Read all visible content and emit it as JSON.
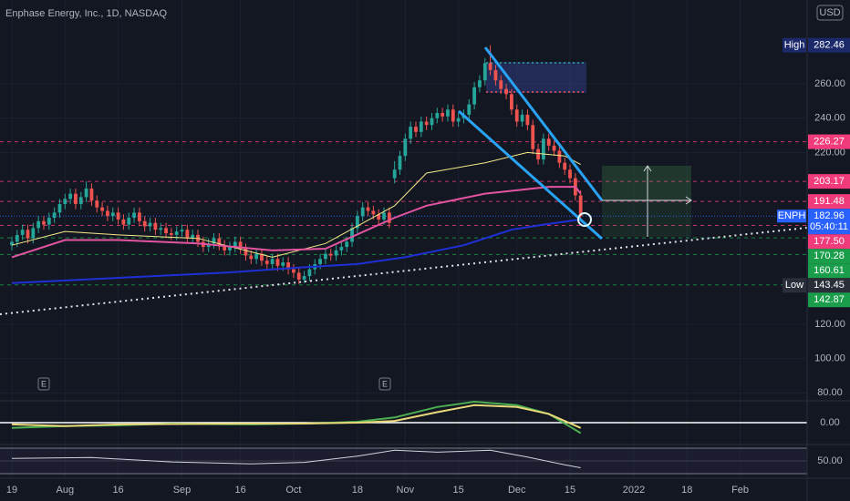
{
  "chart_data": {
    "type": "candlestick",
    "title": "Enphase Energy, Inc., 1D, NASDAQ",
    "currency": "USD",
    "xlim": [
      -2.23,
      149.6
    ],
    "xticks": [
      {
        "value": 0,
        "label": "19"
      },
      {
        "value": 10,
        "label": "Aug"
      },
      {
        "value": 20,
        "label": "16"
      },
      {
        "value": 32,
        "label": "Sep"
      },
      {
        "value": 43,
        "label": "16"
      },
      {
        "value": 53,
        "label": "Oct"
      },
      {
        "value": 65,
        "label": "18"
      },
      {
        "value": 74,
        "label": "Nov"
      },
      {
        "value": 84,
        "label": "15"
      },
      {
        "value": 95,
        "label": "Dec"
      },
      {
        "value": 105,
        "label": "15"
      },
      {
        "value": 117,
        "label": "2022"
      },
      {
        "value": 127,
        "label": "18"
      },
      {
        "value": 137,
        "label": "Feb"
      }
    ],
    "ylim": [
      75.4,
      308.8
    ],
    "yticks": [
      {
        "value": 260,
        "label": "260.00"
      },
      {
        "value": 240,
        "label": "240.00"
      },
      {
        "value": 220,
        "label": "220.00"
      },
      {
        "value": 120,
        "label": "120.00"
      },
      {
        "value": 100,
        "label": "100.00"
      },
      {
        "value": 80,
        "label": "80.00"
      }
    ],
    "up_color": "#26a69a",
    "down_color": "#ef5350",
    "open": [
      166,
      168,
      172,
      175,
      170,
      176,
      180,
      178,
      182,
      185,
      190,
      193,
      196,
      190,
      194,
      199,
      192,
      188,
      186,
      183,
      185,
      181,
      178,
      182,
      185,
      180,
      177,
      179,
      175,
      176,
      173,
      172,
      174,
      175,
      170,
      172,
      168,
      165,
      167,
      170,
      166,
      163,
      165,
      168,
      164,
      160,
      158,
      161,
      157,
      155,
      158,
      154,
      156,
      152,
      150,
      146,
      148,
      152,
      155,
      158,
      161,
      160,
      163,
      165,
      168,
      176,
      183,
      188,
      186,
      184,
      181,
      185,
      205,
      210,
      218,
      228,
      235,
      232,
      238,
      236,
      240,
      243,
      241,
      245,
      238,
      240,
      242,
      248,
      258,
      262,
      272,
      268,
      262,
      257,
      254,
      245,
      238,
      242,
      236,
      222,
      216,
      228,
      224,
      221,
      214,
      210,
      205,
      195
    ],
    "high": [
      171,
      175,
      178,
      178,
      179,
      183,
      183,
      185,
      188,
      193,
      196,
      199,
      199,
      197,
      203.17,
      202,
      195,
      191,
      189,
      188,
      188,
      184,
      185,
      188,
      188,
      183,
      182,
      182,
      179,
      179,
      176,
      177,
      178,
      178,
      175,
      175,
      171,
      170,
      173,
      173,
      169,
      168,
      171,
      171,
      167,
      163,
      164,
      164,
      160,
      161,
      161,
      159,
      159,
      155,
      153,
      151,
      155,
      158,
      161,
      164,
      164,
      166,
      168,
      171,
      179,
      186,
      191,
      191,
      189,
      187,
      188,
      188,
      215,
      221,
      231,
      238,
      238,
      241,
      241,
      243,
      246,
      246,
      248,
      248,
      243,
      245,
      251,
      261,
      265,
      275,
      282.46,
      271,
      265,
      260,
      257,
      248,
      245,
      245,
      239,
      225,
      231,
      231,
      227,
      224,
      217,
      213,
      208,
      198
    ],
    "low": [
      163,
      165,
      169,
      167,
      167,
      173,
      175,
      175,
      179,
      182,
      187,
      190,
      187,
      187,
      191,
      189,
      185,
      183,
      180,
      180,
      178,
      175,
      175,
      179,
      177,
      174,
      174,
      172,
      172,
      170,
      169,
      169,
      171,
      167,
      167,
      165,
      162,
      162,
      164,
      163,
      160,
      160,
      162,
      161,
      157,
      155,
      155,
      154,
      152,
      152,
      151,
      151,
      149,
      147,
      143.45,
      144,
      145,
      149,
      152,
      155,
      157,
      157,
      160,
      162,
      165,
      173,
      180,
      183,
      181,
      178,
      178,
      176,
      202,
      207,
      215,
      225,
      229,
      229,
      233,
      233,
      237,
      238,
      238,
      235,
      235,
      237,
      239,
      245,
      255,
      259,
      265,
      259,
      254,
      251,
      242,
      235,
      235,
      233,
      219,
      213,
      213,
      221,
      218,
      211,
      207,
      202,
      192,
      180
    ],
    "close": [
      168,
      172,
      175,
      170,
      176,
      180,
      178,
      182,
      185,
      190,
      193,
      196,
      190,
      194,
      199,
      192,
      188,
      186,
      183,
      185,
      181,
      178,
      182,
      185,
      180,
      177,
      179,
      175,
      176,
      173,
      172,
      174,
      175,
      170,
      172,
      168,
      165,
      167,
      170,
      166,
      163,
      165,
      168,
      164,
      160,
      158,
      161,
      157,
      155,
      158,
      154,
      156,
      152,
      150,
      146,
      148,
      152,
      155,
      158,
      161,
      160,
      163,
      165,
      168,
      176,
      183,
      188,
      186,
      184,
      181,
      185,
      179,
      210,
      218,
      228,
      235,
      232,
      238,
      236,
      240,
      243,
      241,
      245,
      238,
      240,
      242,
      248,
      258,
      262,
      272,
      268,
      262,
      257,
      254,
      245,
      238,
      242,
      236,
      222,
      216,
      228,
      224,
      221,
      214,
      210,
      205,
      195,
      182.96
    ],
    "series": [
      {
        "color": "#f5e98a",
        "x": [
          0,
          10,
          20,
          35,
          49,
          59,
          72,
          78,
          89,
          97,
          104,
          107
        ],
        "values": [
          166,
          174,
          172,
          170,
          159,
          167,
          189,
          208,
          214,
          220,
          218,
          213
        ]
      },
      {
        "color": "#e254a0",
        "x": [
          0,
          10,
          20,
          35,
          49,
          59,
          72,
          78,
          89,
          101,
          106,
          107
        ],
        "values": [
          159,
          169,
          169,
          167,
          163,
          164,
          182,
          189,
          196,
          200,
          200,
          196
        ]
      },
      {
        "color": "#1f2fd6",
        "x": [
          0,
          20,
          40,
          54,
          65,
          74,
          85,
          94,
          100,
          107
        ],
        "values": [
          144,
          147,
          150,
          153,
          155,
          159,
          166,
          175,
          178,
          181
        ]
      }
    ],
    "levels": {
      "names": [
        "High",
        null,
        null,
        null,
        null,
        null,
        null,
        "Low",
        null
      ],
      "values": [
        282.46,
        226.27,
        203.17,
        191.48,
        177.5,
        170.28,
        160.61,
        143.45,
        142.87
      ],
      "value_labels": [
        "282.46",
        "226.27",
        "203.17",
        "191.48",
        "177.50",
        "170.28",
        "160.61",
        "143.45",
        "142.87"
      ],
      "colors": [
        "#1c2a6b",
        "#f23b7a",
        "#f23b7a",
        "#f23b7a",
        "#f23b7a",
        "#1b9e4b",
        "#1b9e4b",
        "#2a2e39",
        "#1b9e4b"
      ]
    },
    "last": {
      "name": "ENPH",
      "value": 182.96,
      "countdown": "05:40:11",
      "color": "#2962ff"
    },
    "macd": {
      "ylim": [
        -12,
        12
      ],
      "yticks": [
        {
          "value": 0,
          "label": "0.00"
        }
      ],
      "series": [
        {
          "color": "#4caf50",
          "x": [
            0,
            10,
            20,
            30,
            45,
            55,
            65,
            72,
            80,
            87,
            95,
            101,
            107
          ],
          "values": [
            -3,
            -2,
            -1.5,
            -0.5,
            -1,
            -0.5,
            0.5,
            3,
            9,
            12,
            10,
            5,
            -6
          ]
        },
        {
          "color": "#e8d87a",
          "x": [
            0,
            10,
            20,
            30,
            45,
            55,
            65,
            72,
            80,
            87,
            95,
            101,
            107
          ],
          "values": [
            -1,
            -2,
            -1,
            -0.8,
            -0.5,
            -0.5,
            0,
            1,
            6,
            10,
            9,
            5,
            -3
          ]
        }
      ]
    },
    "rsi": {
      "ylim": [
        20,
        80
      ],
      "yticks": [
        {
          "value": 50,
          "label": "50.00"
        }
      ],
      "series": [
        {
          "color": "#d1d4dc",
          "x": [
            0,
            15,
            30,
            45,
            55,
            65,
            72,
            80,
            90,
            97,
            104,
            107
          ],
          "values": [
            55,
            57,
            48,
            44,
            47,
            60,
            72,
            68,
            72,
            58,
            42,
            36
          ]
        }
      ]
    }
  }
}
